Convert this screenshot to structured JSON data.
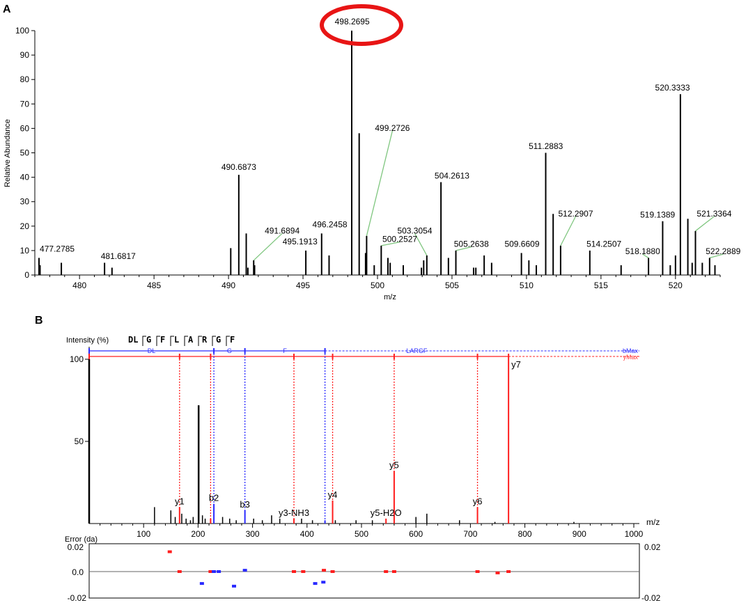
{
  "panel_a": {
    "letter": "A",
    "chart_data": {
      "type": "bar",
      "ylabel": "Relative Abundance",
      "xlabel": "m/z",
      "xlim": [
        477,
        523
      ],
      "ylim": [
        0,
        100
      ],
      "xticks": [
        "480",
        "485",
        "490",
        "495",
        "500",
        "505",
        "510",
        "515",
        "520"
      ],
      "xtick_values": [
        480,
        485,
        490,
        495,
        500,
        505,
        510,
        515,
        520
      ],
      "yticks": [
        "0",
        "10",
        "20",
        "30",
        "40",
        "50",
        "60",
        "70",
        "80",
        "90",
        "100"
      ],
      "highlight_color": "#e81515",
      "leader_color": "#7fc67f",
      "peaks": [
        [
          477.28,
          7
        ],
        [
          477.35,
          4
        ],
        [
          478.78,
          5
        ],
        [
          481.68,
          5
        ],
        [
          482.18,
          3
        ],
        [
          490.15,
          11
        ],
        [
          490.69,
          41
        ],
        [
          491.19,
          17
        ],
        [
          491.3,
          3
        ],
        [
          491.69,
          6
        ],
        [
          491.75,
          4
        ],
        [
          495.19,
          10
        ],
        [
          496.25,
          17
        ],
        [
          496.75,
          8
        ],
        [
          498.27,
          100
        ],
        [
          498.77,
          58
        ],
        [
          499.27,
          16
        ],
        [
          499.2,
          9
        ],
        [
          499.78,
          4
        ],
        [
          500.25,
          12
        ],
        [
          500.7,
          7
        ],
        [
          500.85,
          5
        ],
        [
          501.73,
          4
        ],
        [
          502.95,
          3
        ],
        [
          503.1,
          6
        ],
        [
          503.31,
          8
        ],
        [
          504.26,
          38
        ],
        [
          504.76,
          7
        ],
        [
          505.26,
          10
        ],
        [
          506.45,
          3
        ],
        [
          506.6,
          3
        ],
        [
          507.16,
          8
        ],
        [
          507.66,
          5
        ],
        [
          509.66,
          9
        ],
        [
          510.16,
          6
        ],
        [
          510.66,
          4
        ],
        [
          511.29,
          50
        ],
        [
          511.79,
          25
        ],
        [
          512.29,
          12
        ],
        [
          514.25,
          10
        ],
        [
          516.35,
          4
        ],
        [
          518.19,
          7
        ],
        [
          519.14,
          22
        ],
        [
          519.65,
          4
        ],
        [
          520.0,
          8
        ],
        [
          520.33,
          74
        ],
        [
          520.83,
          23
        ],
        [
          521.12,
          5
        ],
        [
          521.34,
          18
        ],
        [
          521.8,
          5
        ],
        [
          522.29,
          7
        ],
        [
          522.65,
          4
        ]
      ],
      "labels": [
        {
          "text": "477.2785",
          "x": 477.28,
          "y": 7,
          "lx": 478.5,
          "ly": 9.5,
          "leader": false
        },
        {
          "text": "481.6817",
          "x": 481.68,
          "y": 5,
          "lx": 482.6,
          "ly": 6.5,
          "leader": false
        },
        {
          "text": "490.6873",
          "x": 490.69,
          "y": 41,
          "lx": 490.69,
          "ly": 43,
          "leader": false
        },
        {
          "text": "491.6894",
          "x": 491.69,
          "y": 6,
          "lx": 493.6,
          "ly": 17,
          "leader": true
        },
        {
          "text": "495.1913",
          "x": 495.19,
          "y": 10,
          "lx": 494.8,
          "ly": 12.5,
          "leader": false
        },
        {
          "text": "496.2458",
          "x": 496.25,
          "y": 17,
          "lx": 496.8,
          "ly": 19.5,
          "leader": false
        },
        {
          "text": "498.2695",
          "x": 498.27,
          "y": 100,
          "lx": 498.3,
          "ly": 102.5,
          "leader": false
        },
        {
          "text": "499.2726",
          "x": 499.27,
          "y": 16,
          "lx": 501.0,
          "ly": 59,
          "leader": true
        },
        {
          "text": "500.2527",
          "x": 500.25,
          "y": 12,
          "lx": 501.5,
          "ly": 13.5,
          "leader": true
        },
        {
          "text": "503.3054",
          "x": 503.31,
          "y": 8,
          "lx": 502.5,
          "ly": 17,
          "leader": true
        },
        {
          "text": "504.2613",
          "x": 504.26,
          "y": 38,
          "lx": 505.0,
          "ly": 39.5,
          "leader": false
        },
        {
          "text": "505.2638",
          "x": 505.26,
          "y": 10,
          "lx": 506.3,
          "ly": 11.5,
          "leader": true
        },
        {
          "text": "509.6609",
          "x": 509.66,
          "y": 9,
          "lx": 509.7,
          "ly": 11.5,
          "leader": false
        },
        {
          "text": "511.2883",
          "x": 511.29,
          "y": 50,
          "lx": 511.3,
          "ly": 51.5,
          "leader": false
        },
        {
          "text": "512.2907",
          "x": 512.29,
          "y": 12,
          "lx": 513.3,
          "ly": 24,
          "leader": true
        },
        {
          "text": "514.2507",
          "x": 514.25,
          "y": 10,
          "lx": 515.2,
          "ly": 11.5,
          "leader": false
        },
        {
          "text": "518.1880",
          "x": 518.19,
          "y": 7,
          "lx": 517.8,
          "ly": 8.5,
          "leader": true
        },
        {
          "text": "519.1389",
          "x": 519.14,
          "y": 22,
          "lx": 518.8,
          "ly": 23.5,
          "leader": false
        },
        {
          "text": "520.3333",
          "x": 520.33,
          "y": 74,
          "lx": 519.8,
          "ly": 75.5,
          "leader": false
        },
        {
          "text": "521.3364",
          "x": 521.34,
          "y": 18,
          "lx": 522.6,
          "ly": 24,
          "leader": true
        },
        {
          "text": "522.2889",
          "x": 522.29,
          "y": 7,
          "lx": 523.2,
          "ly": 8.5,
          "leader": true
        }
      ]
    }
  },
  "panel_b": {
    "letter": "B",
    "intensity_label": "Intensity (%)",
    "sequence": [
      "DL",
      "G",
      "F",
      "L",
      "A",
      "R",
      "G",
      "F"
    ],
    "b_color": "#2a2aff",
    "y_color": "#ff1e1e",
    "b_bar_texts": [
      "DL",
      "G",
      "F",
      "LARGF"
    ],
    "b_series_name": "bMax",
    "y_series_name": "yMax",
    "chart_data": {
      "type": "bar",
      "xlabel": "m/z",
      "xlim": [
        0,
        1000
      ],
      "ylim": [
        0,
        100
      ],
      "xticks": [
        "100",
        "200",
        "300",
        "400",
        "500",
        "600",
        "700",
        "800",
        "900",
        "1000"
      ],
      "xtick_values": [
        100,
        200,
        300,
        400,
        500,
        600,
        700,
        800,
        900,
        1000
      ],
      "yticks": [
        "50",
        "100"
      ],
      "ytick_values": [
        50,
        100
      ],
      "b_ion_mz": [
        0,
        229,
        286,
        433
      ],
      "y_ion_mz": [
        0,
        166,
        223,
        376,
        447,
        560,
        713,
        770
      ],
      "peaks_black": [
        [
          0,
          100
        ],
        [
          120,
          10
        ],
        [
          150,
          8
        ],
        [
          158,
          4
        ],
        [
          170,
          6
        ],
        [
          178,
          3
        ],
        [
          186,
          2
        ],
        [
          191,
          4
        ],
        [
          201,
          72
        ],
        [
          208,
          5
        ],
        [
          213,
          3
        ],
        [
          245,
          4
        ],
        [
          258,
          3
        ],
        [
          270,
          2
        ],
        [
          302,
          3
        ],
        [
          318,
          2
        ],
        [
          335,
          5
        ],
        [
          350,
          3
        ],
        [
          390,
          3
        ],
        [
          410,
          2
        ],
        [
          452,
          2
        ],
        [
          490,
          2
        ],
        [
          520,
          2
        ],
        [
          600,
          4
        ],
        [
          620,
          6
        ],
        [
          680,
          2
        ],
        [
          745,
          1
        ],
        [
          890,
          1
        ]
      ],
      "peaks_red": [
        [
          166,
          10
        ],
        [
          223,
          3
        ],
        [
          376,
          3
        ],
        [
          447,
          14
        ],
        [
          545,
          3
        ],
        [
          560,
          32
        ],
        [
          713,
          10
        ],
        [
          770,
          100
        ]
      ],
      "peaks_blue": [
        [
          229,
          12
        ],
        [
          286,
          8
        ],
        [
          433,
          2
        ]
      ],
      "ion_labels": [
        {
          "text": "y1",
          "x": 166,
          "y": 10
        },
        {
          "text": "b2",
          "x": 229,
          "y": 12
        },
        {
          "text": "b3",
          "x": 286,
          "y": 8
        },
        {
          "text": "y3-NH3",
          "x": 376,
          "y": 3
        },
        {
          "text": "y4",
          "x": 447,
          "y": 14
        },
        {
          "text": "y5-H2O",
          "x": 545,
          "y": 3
        },
        {
          "text": "y5",
          "x": 560,
          "y": 32
        },
        {
          "text": "y6",
          "x": 713,
          "y": 10
        },
        {
          "text": "y7",
          "x": 770,
          "y": 100
        }
      ]
    },
    "error_chart": {
      "type": "scatter",
      "ylabel": "Error (da)",
      "yticks_left": [
        "0.02",
        "0.0",
        "-0.02"
      ],
      "yticks_right": [
        "0.02",
        "-0.02"
      ],
      "ylim": [
        -0.02,
        0.02
      ],
      "points_red": [
        [
          148,
          0.015
        ],
        [
          166,
          0.0
        ],
        [
          223,
          0.0
        ],
        [
          376,
          0.0
        ],
        [
          393,
          0.0
        ],
        [
          431,
          0.001
        ],
        [
          447,
          0.0
        ],
        [
          545,
          0.0
        ],
        [
          560,
          0.0
        ],
        [
          713,
          0.0
        ],
        [
          750,
          -0.001
        ],
        [
          770,
          0.0
        ]
      ],
      "points_blue": [
        [
          207,
          -0.009
        ],
        [
          229,
          0.0
        ],
        [
          238,
          0.0
        ],
        [
          266,
          -0.011
        ],
        [
          286,
          0.001
        ],
        [
          415,
          -0.009
        ],
        [
          430,
          -0.008
        ]
      ]
    }
  }
}
